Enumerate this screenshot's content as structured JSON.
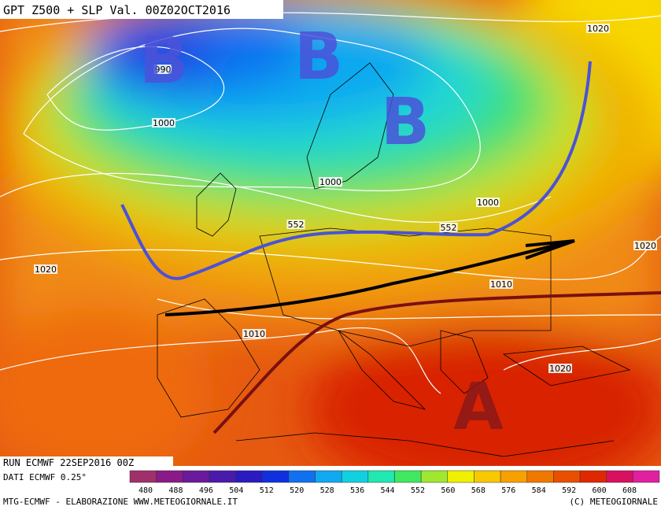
{
  "header": {
    "title": "GPT Z500 + SLP Val. 00Z02OCT2016"
  },
  "map": {
    "isobar_labels": [
      "1020",
      "990",
      "1000",
      "1000",
      "1000",
      "552",
      "552",
      "1020",
      "1020",
      "1010",
      "1010",
      "1020"
    ],
    "pressure_centers": [
      "B",
      "B",
      "B",
      "A"
    ]
  },
  "footer": {
    "run": "RUN ECMWF 22SEP2016 00Z",
    "data_source": "DATI ECMWF 0.25°",
    "credit": "MTG-ECMWF - ELABORAZIONE WWW.METEOGIORNALE.IT",
    "copyright": "(C) METEOGIORNALE"
  },
  "colorbar": {
    "labels": [
      "480",
      "488",
      "496",
      "504",
      "512",
      "520",
      "528",
      "536",
      "544",
      "552",
      "560",
      "568",
      "576",
      "584",
      "592",
      "600",
      "608"
    ],
    "colors": [
      "#a0306a",
      "#8a1a88",
      "#6a1a9a",
      "#4a1aaa",
      "#2a1ac0",
      "#1030e0",
      "#1070f0",
      "#10a8f0",
      "#10d0e0",
      "#20e8b0",
      "#40e860",
      "#a0e830",
      "#f0f000",
      "#f8c800",
      "#f8a000",
      "#f07800",
      "#e85000",
      "#e02800",
      "#d81060",
      "#e020a0"
    ]
  }
}
